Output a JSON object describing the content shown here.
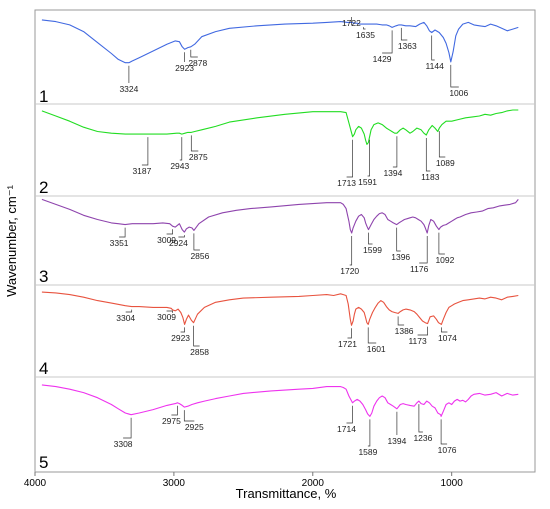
{
  "chart_data": {
    "type": "line",
    "xlabel": "Transmittance, %",
    "ylabel": "Wavenumber, cm⁻¹",
    "xlim": [
      4000,
      400
    ],
    "x_ticks": [
      4000,
      3000,
      2000,
      1000
    ],
    "x_tick_labels": [
      "4000",
      "3000",
      "2000",
      "1000"
    ],
    "grid": false,
    "series": [
      {
        "name": "1",
        "color": "#4169e1",
        "x": [
          3950,
          3850,
          3750,
          3650,
          3550,
          3450,
          3400,
          3350,
          3324,
          3300,
          3250,
          3150,
          3050,
          2990,
          2960,
          2940,
          2923,
          2900,
          2878,
          2850,
          2800,
          2700,
          2600,
          2400,
          2200,
          2000,
          1900,
          1800,
          1750,
          1722,
          1700,
          1680,
          1660,
          1635,
          1610,
          1580,
          1540,
          1500,
          1470,
          1450,
          1429,
          1400,
          1380,
          1363,
          1330,
          1300,
          1260,
          1230,
          1200,
          1180,
          1160,
          1144,
          1120,
          1090,
          1060,
          1040,
          1020,
          1006,
          990,
          970,
          950,
          920,
          880,
          840,
          800,
          760,
          720,
          680,
          640,
          600,
          560,
          520
        ],
        "y": [
          93,
          91,
          87,
          79,
          66,
          53,
          46,
          42,
          42,
          44,
          48,
          56,
          64,
          68,
          67,
          61,
          58,
          60,
          61,
          64,
          73,
          79,
          83,
          86,
          88,
          89,
          90,
          91,
          90,
          90,
          89,
          89,
          88,
          88,
          88,
          88,
          88,
          87,
          87,
          86,
          84,
          86,
          87,
          87,
          86,
          86,
          85,
          88,
          90,
          86,
          80,
          78,
          81,
          78,
          72,
          65,
          54,
          43,
          55,
          74,
          82,
          88,
          90,
          87,
          86,
          85,
          88,
          86,
          83,
          80,
          82,
          84
        ]
      },
      {
        "name": "2",
        "color": "#22dd22",
        "x": [
          3950,
          3850,
          3750,
          3650,
          3550,
          3450,
          3350,
          3250,
          3187,
          3150,
          3050,
          2980,
          2960,
          2943,
          2920,
          2900,
          2875,
          2850,
          2800,
          2700,
          2600,
          2400,
          2200,
          2000,
          1900,
          1800,
          1760,
          1740,
          1713,
          1700,
          1690,
          1670,
          1650,
          1630,
          1620,
          1610,
          1600,
          1591,
          1580,
          1560,
          1530,
          1500,
          1470,
          1450,
          1430,
          1410,
          1394,
          1370,
          1350,
          1330,
          1300,
          1280,
          1250,
          1220,
          1200,
          1183,
          1165,
          1140,
          1120,
          1100,
          1089,
          1070,
          1040,
          1000,
          950,
          900,
          850,
          800,
          760,
          720,
          680,
          640,
          600,
          560,
          520
        ],
        "y": [
          92,
          86,
          80,
          73,
          68,
          66,
          65,
          65,
          65,
          65,
          65,
          66,
          66,
          65,
          66,
          67,
          67,
          68,
          70,
          74,
          79,
          84,
          88,
          91,
          91,
          91,
          90,
          78,
          62,
          65,
          70,
          74,
          72,
          65,
          58,
          53,
          55,
          62,
          70,
          76,
          78,
          76,
          72,
          70,
          68,
          66,
          66,
          70,
          72,
          70,
          66,
          68,
          72,
          70,
          66,
          64,
          70,
          75,
          72,
          68,
          72,
          76,
          80,
          80,
          82,
          84,
          85,
          86,
          88,
          87,
          89,
          90,
          92,
          93,
          93
        ]
      },
      {
        "name": "3",
        "color": "#8e44ad",
        "x": [
          3950,
          3850,
          3750,
          3650,
          3550,
          3450,
          3400,
          3351,
          3300,
          3250,
          3150,
          3080,
          3030,
          3009,
          2990,
          2960,
          2940,
          2924,
          2910,
          2890,
          2870,
          2856,
          2820,
          2750,
          2650,
          2550,
          2450,
          2300,
          2100,
          2000,
          1900,
          1850,
          1800,
          1780,
          1760,
          1740,
          1730,
          1720,
          1710,
          1690,
          1670,
          1650,
          1630,
          1620,
          1610,
          1599,
          1580,
          1560,
          1540,
          1520,
          1500,
          1480,
          1460,
          1440,
          1420,
          1396,
          1380,
          1360,
          1340,
          1320,
          1300,
          1280,
          1260,
          1240,
          1220,
          1200,
          1190,
          1176,
          1165,
          1150,
          1130,
          1110,
          1092,
          1080,
          1060,
          1040,
          1020,
          1000,
          980,
          960,
          940,
          900,
          860,
          820,
          780,
          740,
          700,
          660,
          620,
          580,
          540,
          520
        ],
        "y": [
          96,
          90,
          84,
          77,
          72,
          68,
          67,
          66,
          67,
          67,
          67,
          68,
          67,
          64,
          63,
          67,
          60,
          57,
          61,
          63,
          62,
          59,
          67,
          75,
          80,
          83,
          85,
          87,
          90,
          91,
          92,
          92,
          92,
          90,
          85,
          70,
          60,
          56,
          62,
          70,
          76,
          78,
          74,
          68,
          64,
          60,
          66,
          72,
          76,
          79,
          80,
          78,
          72,
          70,
          68,
          66,
          68,
          70,
          72,
          73,
          74,
          75,
          74,
          72,
          70,
          66,
          62,
          56,
          65,
          72,
          70,
          64,
          60,
          63,
          65,
          66,
          68,
          70,
          72,
          74,
          75,
          78,
          80,
          81,
          82,
          85,
          86,
          88,
          89,
          90,
          92,
          96
        ]
      },
      {
        "name": "4",
        "color": "#e8533f",
        "x": [
          3950,
          3850,
          3750,
          3650,
          3550,
          3450,
          3350,
          3304,
          3250,
          3150,
          3050,
          3020,
          3009,
          2990,
          2970,
          2950,
          2935,
          2923,
          2910,
          2895,
          2875,
          2858,
          2830,
          2780,
          2700,
          2600,
          2500,
          2300,
          2100,
          2000,
          1900,
          1850,
          1800,
          1780,
          1760,
          1745,
          1730,
          1721,
          1710,
          1700,
          1690,
          1670,
          1650,
          1630,
          1620,
          1610,
          1601,
          1590,
          1570,
          1550,
          1530,
          1510,
          1490,
          1470,
          1450,
          1430,
          1410,
          1386,
          1370,
          1350,
          1330,
          1300,
          1270,
          1250,
          1230,
          1210,
          1190,
          1173,
          1155,
          1130,
          1110,
          1095,
          1074,
          1060,
          1040,
          1020,
          1000,
          980,
          950,
          920,
          880,
          840,
          800,
          760,
          720,
          680,
          640,
          600,
          560,
          520
        ],
        "y": [
          94,
          93,
          91,
          88,
          84,
          81,
          78,
          77,
          77,
          76,
          76,
          75,
          73,
          72,
          74,
          70,
          64,
          56,
          62,
          67,
          61,
          58,
          68,
          76,
          82,
          85,
          87,
          88,
          89,
          90,
          91,
          90,
          92,
          91,
          90,
          80,
          62,
          55,
          60,
          68,
          74,
          76,
          74,
          70,
          64,
          58,
          56,
          62,
          70,
          76,
          81,
          84,
          82,
          77,
          73,
          71,
          70,
          69,
          71,
          73,
          74,
          73,
          71,
          68,
          64,
          60,
          58,
          57,
          65,
          66,
          62,
          58,
          56,
          62,
          70,
          76,
          78,
          80,
          82,
          84,
          85,
          86,
          87,
          86,
          88,
          87,
          85,
          88,
          89,
          90
        ]
      },
      {
        "name": "5",
        "color": "#ee33ee",
        "x": [
          3950,
          3850,
          3750,
          3650,
          3550,
          3450,
          3400,
          3350,
          3308,
          3250,
          3150,
          3050,
          2990,
          2975,
          2960,
          2940,
          2925,
          2900,
          2870,
          2830,
          2780,
          2700,
          2600,
          2500,
          2300,
          2100,
          2000,
          1900,
          1850,
          1800,
          1780,
          1760,
          1740,
          1714,
          1700,
          1680,
          1660,
          1640,
          1620,
          1605,
          1589,
          1575,
          1560,
          1540,
          1520,
          1500,
          1480,
          1460,
          1440,
          1420,
          1394,
          1370,
          1350,
          1330,
          1300,
          1270,
          1250,
          1236,
          1220,
          1200,
          1180,
          1160,
          1140,
          1120,
          1100,
          1080,
          1076,
          1060,
          1040,
          1020,
          1000,
          980,
          960,
          940,
          920,
          900,
          880,
          860,
          840,
          800,
          760,
          720,
          680,
          640,
          600,
          560,
          520
        ],
        "y": [
          93,
          91,
          88,
          84,
          78,
          70,
          65,
          60,
          58,
          60,
          64,
          69,
          71,
          72,
          71,
          69,
          67,
          68,
          70,
          72,
          74,
          77,
          80,
          83,
          86,
          88,
          89,
          91,
          91,
          91,
          90,
          88,
          80,
          72,
          74,
          76,
          74,
          70,
          64,
          59,
          56,
          60,
          68,
          74,
          78,
          80,
          78,
          72,
          70,
          68,
          65,
          70,
          71,
          70,
          69,
          68,
          72,
          74,
          71,
          70,
          74,
          72,
          68,
          66,
          60,
          58,
          56,
          62,
          70,
          72,
          70,
          74,
          76,
          74,
          75,
          73,
          76,
          80,
          82,
          83,
          81,
          82,
          84,
          80,
          83,
          81,
          82
        ]
      }
    ],
    "peak_labels": [
      [
        "3324",
        "2923",
        "2878",
        "1722",
        "1635",
        "1429",
        "1363",
        "1144",
        "1006"
      ],
      [
        "3187",
        "2943",
        "2875",
        "1713",
        "1591",
        "1394",
        "1183",
        "1089"
      ],
      [
        "3351",
        "3009",
        "2924",
        "2856",
        "1720",
        "1599",
        "1396",
        "1176",
        "1092"
      ],
      [
        "3304",
        "3009",
        "2923",
        "2858",
        "1721",
        "1601",
        "1386",
        "1173",
        "1074"
      ],
      [
        "3308",
        "2975",
        "2925",
        "1714",
        "1589",
        "1394",
        "1236",
        "1076"
      ]
    ]
  }
}
